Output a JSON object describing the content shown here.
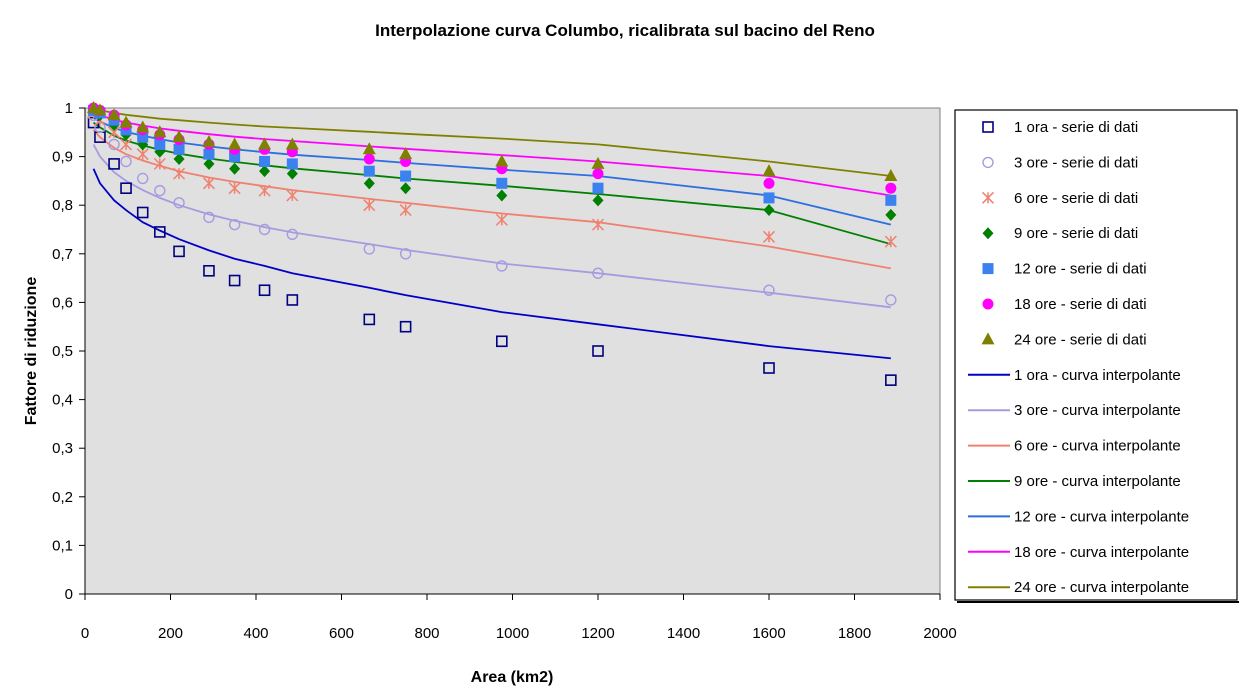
{
  "chart_data": {
    "type": "scatter",
    "title": "Interpolazione curva Columbo, ricalibrata sul bacino del Reno",
    "xlabel": "Area (km2)",
    "ylabel": "Fattore di riduzione",
    "xlim": [
      0,
      2000
    ],
    "ylim": [
      0,
      1
    ],
    "x_ticks": [
      0,
      200,
      400,
      600,
      800,
      1000,
      1200,
      1400,
      1600,
      1800,
      2000
    ],
    "y_ticks": [
      0,
      0.1,
      0.2,
      0.3,
      0.4,
      0.5,
      0.6,
      0.7,
      0.8,
      0.9,
      1
    ],
    "x_tick_labels": [
      "0",
      "200",
      "400",
      "600",
      "800",
      "1000",
      "1200",
      "1400",
      "1600",
      "1800",
      "2000"
    ],
    "y_tick_labels": [
      "0",
      "0,1",
      "0,2",
      "0,3",
      "0,4",
      "0,5",
      "0,6",
      "0,7",
      "0,8",
      "0,9",
      "1"
    ],
    "grid": false,
    "plot_background": "#e0e0e0",
    "legend_position": "right",
    "x": [
      20,
      35,
      68,
      96,
      135,
      175,
      220,
      290,
      350,
      420,
      485,
      665,
      750,
      975,
      1200,
      1600,
      1885
    ],
    "point_series": [
      {
        "name": "1 ora - serie di dati",
        "marker": "square-open",
        "color": "#000080",
        "values": [
          0.97,
          0.94,
          0.885,
          0.835,
          0.785,
          0.745,
          0.705,
          0.665,
          0.645,
          0.625,
          0.605,
          0.565,
          0.55,
          0.52,
          0.5,
          0.465,
          0.44
        ]
      },
      {
        "name": "3 ore - serie di dati",
        "marker": "circle-open",
        "color": "#a89ae0",
        "values": [
          0.985,
          0.96,
          0.925,
          0.89,
          0.855,
          0.83,
          0.805,
          0.775,
          0.76,
          0.75,
          0.74,
          0.71,
          0.7,
          0.675,
          0.66,
          0.625,
          0.605
        ]
      },
      {
        "name": "6 ore - serie di dati",
        "marker": "asterisk",
        "color": "#f08070",
        "values": [
          0.99,
          0.975,
          0.95,
          0.925,
          0.905,
          0.885,
          0.865,
          0.845,
          0.835,
          0.83,
          0.82,
          0.8,
          0.79,
          0.77,
          0.76,
          0.735,
          0.725
        ]
      },
      {
        "name": "9 ore - serie di dati",
        "marker": "diamond",
        "color": "#008000",
        "values": [
          0.995,
          0.985,
          0.965,
          0.945,
          0.925,
          0.91,
          0.895,
          0.885,
          0.875,
          0.87,
          0.865,
          0.845,
          0.835,
          0.82,
          0.81,
          0.79,
          0.78
        ]
      },
      {
        "name": "12 ore - serie di dati",
        "marker": "square",
        "color": "#3b82f0",
        "values": [
          0.995,
          0.99,
          0.975,
          0.955,
          0.94,
          0.925,
          0.915,
          0.905,
          0.9,
          0.89,
          0.885,
          0.87,
          0.86,
          0.845,
          0.835,
          0.815,
          0.81
        ]
      },
      {
        "name": "18 ore - serie di dati",
        "marker": "circle",
        "color": "#ff00ff",
        "values": [
          1.0,
          0.995,
          0.985,
          0.965,
          0.955,
          0.945,
          0.935,
          0.925,
          0.915,
          0.915,
          0.91,
          0.895,
          0.89,
          0.875,
          0.865,
          0.845,
          0.835
        ]
      },
      {
        "name": "24 ore - serie di dati",
        "marker": "triangle",
        "color": "#808000",
        "values": [
          1.0,
          0.995,
          0.985,
          0.97,
          0.96,
          0.95,
          0.94,
          0.93,
          0.925,
          0.925,
          0.925,
          0.915,
          0.905,
          0.89,
          0.885,
          0.87,
          0.86
        ]
      }
    ],
    "curve_x": [
      20,
      35,
      68,
      96,
      135,
      175,
      220,
      290,
      350,
      420,
      485,
      665,
      750,
      975,
      1200,
      1600,
      1885
    ],
    "curve_series": [
      {
        "name": "1 ora - curva interpolante",
        "color": "#0000c8",
        "values": [
          0.875,
          0.845,
          0.81,
          0.79,
          0.765,
          0.748,
          0.73,
          0.707,
          0.69,
          0.675,
          0.66,
          0.63,
          0.615,
          0.58,
          0.555,
          0.51,
          0.485
        ]
      },
      {
        "name": "3 ore - curva interpolante",
        "color": "#a89ae0",
        "values": [
          0.925,
          0.9,
          0.868,
          0.85,
          0.831,
          0.815,
          0.8,
          0.781,
          0.768,
          0.755,
          0.744,
          0.72,
          0.708,
          0.68,
          0.66,
          0.62,
          0.59
        ]
      },
      {
        "name": "6 ore - curva interpolante",
        "color": "#f08070",
        "values": [
          0.955,
          0.94,
          0.918,
          0.905,
          0.892,
          0.881,
          0.87,
          0.857,
          0.848,
          0.839,
          0.831,
          0.813,
          0.805,
          0.783,
          0.765,
          0.715,
          0.67
        ]
      },
      {
        "name": "9 ore - curva interpolante",
        "color": "#008000",
        "values": [
          0.97,
          0.96,
          0.943,
          0.933,
          0.923,
          0.914,
          0.906,
          0.896,
          0.889,
          0.882,
          0.876,
          0.862,
          0.855,
          0.84,
          0.823,
          0.79,
          0.72
        ]
      },
      {
        "name": "12 ore - curva interpolante",
        "color": "#2d6fe0",
        "values": [
          0.98,
          0.972,
          0.959,
          0.951,
          0.943,
          0.936,
          0.929,
          0.921,
          0.915,
          0.909,
          0.904,
          0.893,
          0.887,
          0.873,
          0.86,
          0.82,
          0.76
        ]
      },
      {
        "name": "18 ore - curva interpolante",
        "color": "#ff00ff",
        "values": [
          0.99,
          0.985,
          0.976,
          0.97,
          0.964,
          0.958,
          0.953,
          0.946,
          0.941,
          0.936,
          0.932,
          0.921,
          0.916,
          0.903,
          0.89,
          0.86,
          0.82
        ]
      },
      {
        "name": "24 ore - curva interpolante",
        "color": "#808000",
        "values": [
          0.998,
          0.995,
          0.99,
          0.986,
          0.982,
          0.978,
          0.975,
          0.97,
          0.966,
          0.962,
          0.959,
          0.951,
          0.947,
          0.937,
          0.925,
          0.89,
          0.86
        ]
      }
    ]
  }
}
